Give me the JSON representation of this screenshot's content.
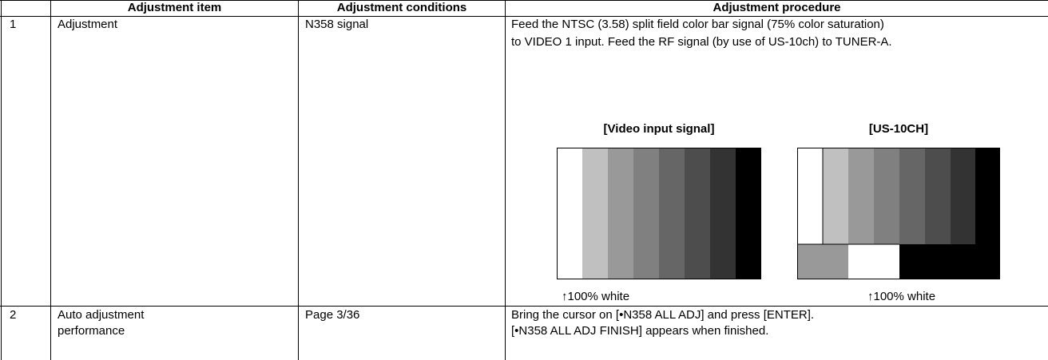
{
  "table": {
    "header": [
      "Adjustment item",
      "Adjustment conditions",
      "Adjustment procedure"
    ],
    "rows": [
      {
        "no": "1",
        "item": [
          "Adjustment"
        ],
        "conditions": "N358 signal",
        "procedure": [
          "Feed the NTSC (3.58) split field color bar signal (75% color saturation)",
          "to VIDEO 1 input. Feed the RF signal (by use of US-10ch) to TUNER-A."
        ],
        "figures": [
          {
            "title": "[Video input signal]",
            "note": "↑100% white"
          },
          {
            "title": "[US-10CH]",
            "note": "↑100% white"
          }
        ]
      },
      {
        "no": "2",
        "item": [
          "Auto adjustment",
          "performance"
        ],
        "conditions": "Page 3/36",
        "procedure": [
          "Bring the cursor on [•N358 ALL ADJ] and press [ENTER].",
          "[•N358 ALL ADJ FINISH] appears when finished."
        ]
      }
    ]
  }
}
